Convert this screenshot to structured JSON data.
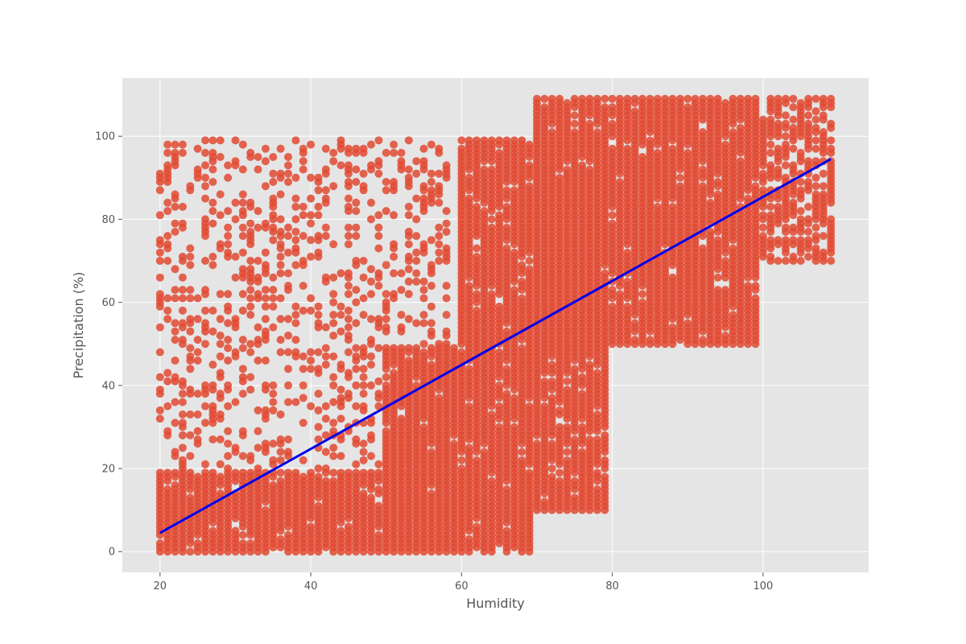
{
  "chart_data": {
    "type": "scatter",
    "title": "",
    "xlabel": "Humidity",
    "ylabel": "Precipitation (%)",
    "xlim": [
      15,
      114
    ],
    "ylim": [
      -5,
      114
    ],
    "xticks": [
      20,
      40,
      60,
      80,
      100
    ],
    "yticks": [
      0,
      20,
      40,
      60,
      80,
      100
    ],
    "grid": true,
    "legend": "none",
    "style": "ggplot",
    "colors": {
      "background": "#e5e5e5",
      "grid": "#ffffff",
      "points": "#e24a33",
      "fit_line": "#0000ee"
    },
    "regions": [
      {
        "humidity": [
          20,
          69
        ],
        "precipitation": [
          0,
          19
        ],
        "density": "dense"
      },
      {
        "humidity": [
          20,
          58
        ],
        "precipitation": [
          20,
          99
        ],
        "density": "sparse"
      },
      {
        "humidity": [
          50,
          59
        ],
        "precipitation": [
          0,
          49
        ],
        "density": "dense"
      },
      {
        "humidity": [
          60,
          79
        ],
        "precipitation": [
          10,
          99
        ],
        "density": "dense"
      },
      {
        "humidity": [
          70,
          99
        ],
        "precipitation": [
          50,
          109
        ],
        "density": "dense"
      },
      {
        "humidity": [
          100,
          109
        ],
        "precipitation": [
          70,
          109
        ],
        "density": "medium"
      }
    ],
    "regression_line": {
      "x": [
        20,
        109
      ],
      "y": [
        4.5,
        94.5
      ]
    }
  }
}
